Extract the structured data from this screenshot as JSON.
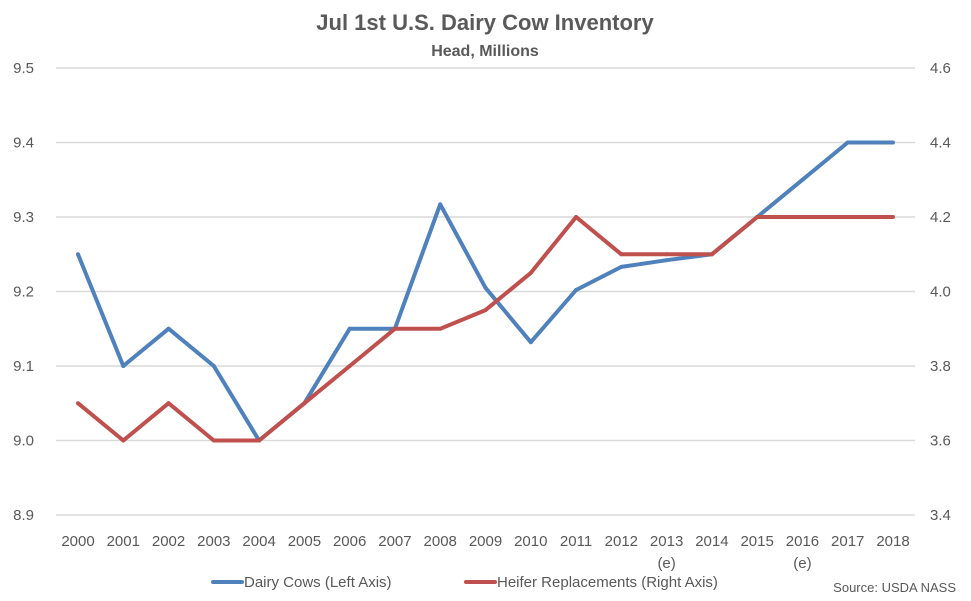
{
  "chart_data": {
    "type": "line",
    "title": "Jul 1st U.S. Dairy Cow Inventory",
    "subtitle": "Head, Millions",
    "categories": [
      "2000",
      "2001",
      "2002",
      "2003",
      "2004",
      "2005",
      "2006",
      "2007",
      "2008",
      "2009",
      "2010",
      "2011",
      "2012",
      "2013",
      "2014",
      "2015",
      "2016",
      "2017",
      "2018"
    ],
    "category_sublabels": {
      "2013": "(e)",
      "2016": "(e)"
    },
    "y_left": {
      "range": [
        8.9,
        9.5
      ],
      "ticks": [
        "8.9",
        "9.0",
        "9.1",
        "9.2",
        "9.3",
        "9.4",
        "9.5"
      ]
    },
    "y_right": {
      "range": [
        3.4,
        4.6
      ],
      "ticks": [
        "3.4",
        "3.6",
        "3.8",
        "4.0",
        "4.2",
        "4.4",
        "4.6"
      ]
    },
    "grid": true,
    "legend_position": "bottom",
    "series": [
      {
        "name": "Dairy Cows (Left Axis)",
        "axis": "left",
        "color": "#4f81bd",
        "values": [
          9.25,
          9.1,
          9.15,
          9.1,
          9.0,
          9.05,
          9.15,
          9.15,
          9.317,
          9.205,
          9.132,
          9.202,
          9.233,
          9.242,
          9.25,
          9.3,
          9.35,
          9.4,
          9.4
        ]
      },
      {
        "name": "Heifer Replacements (Right Axis)",
        "axis": "right",
        "color": "#c0504d",
        "values": [
          3.7,
          3.6,
          3.7,
          3.6,
          3.6,
          3.7,
          3.8,
          3.9,
          3.9,
          3.95,
          4.05,
          4.2,
          4.1,
          4.1,
          4.1,
          4.2,
          4.2,
          4.2,
          4.2
        ]
      }
    ],
    "source": "Source: USDA NASS"
  }
}
